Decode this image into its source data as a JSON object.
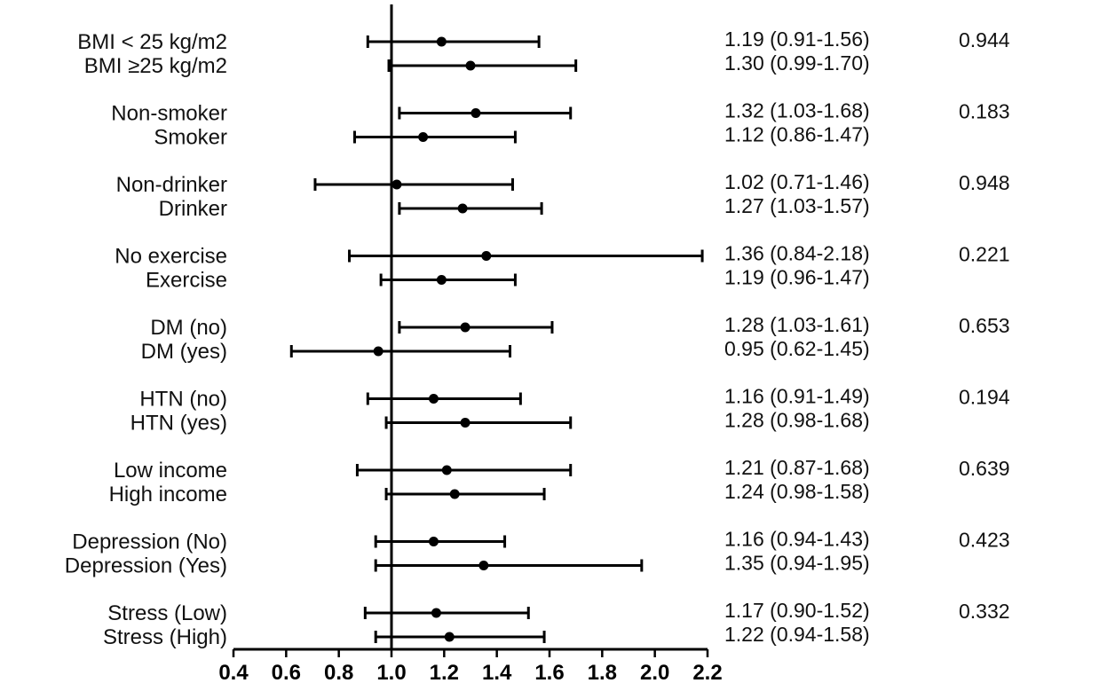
{
  "chart_data": {
    "type": "forest",
    "reference_line": 1.0,
    "xlim": [
      0.4,
      2.2
    ],
    "xticks": [
      "0.4",
      "0.6",
      "0.8",
      "1.0",
      "1.2",
      "1.4",
      "1.6",
      "1.8",
      "2.0",
      "2.2"
    ],
    "groups": [
      {
        "p_value": "0.944",
        "rows": [
          {
            "label": "BMI < 25 kg/m2",
            "estimate": 1.19,
            "lower": 0.91,
            "upper": 1.56,
            "ci_text": "1.19 (0.91-1.56)"
          },
          {
            "label": "BMI ≥25 kg/m2",
            "estimate": 1.3,
            "lower": 0.99,
            "upper": 1.7,
            "ci_text": "1.30 (0.99-1.70)"
          }
        ]
      },
      {
        "p_value": "0.183",
        "rows": [
          {
            "label": "Non-smoker",
            "estimate": 1.32,
            "lower": 1.03,
            "upper": 1.68,
            "ci_text": "1.32 (1.03-1.68)"
          },
          {
            "label": "Smoker",
            "estimate": 1.12,
            "lower": 0.86,
            "upper": 1.47,
            "ci_text": "1.12 (0.86-1.47)"
          }
        ]
      },
      {
        "p_value": "0.948",
        "rows": [
          {
            "label": "Non-drinker",
            "estimate": 1.02,
            "lower": 0.71,
            "upper": 1.46,
            "ci_text": "1.02 (0.71-1.46)"
          },
          {
            "label": "Drinker",
            "estimate": 1.27,
            "lower": 1.03,
            "upper": 1.57,
            "ci_text": "1.27 (1.03-1.57)"
          }
        ]
      },
      {
        "p_value": "0.221",
        "rows": [
          {
            "label": "No exercise",
            "estimate": 1.36,
            "lower": 0.84,
            "upper": 2.18,
            "ci_text": "1.36 (0.84-2.18)"
          },
          {
            "label": "Exercise",
            "estimate": 1.19,
            "lower": 0.96,
            "upper": 1.47,
            "ci_text": "1.19 (0.96-1.47)"
          }
        ]
      },
      {
        "p_value": "0.653",
        "rows": [
          {
            "label": "DM (no)",
            "estimate": 1.28,
            "lower": 1.03,
            "upper": 1.61,
            "ci_text": "1.28 (1.03-1.61)"
          },
          {
            "label": "DM (yes)",
            "estimate": 0.95,
            "lower": 0.62,
            "upper": 1.45,
            "ci_text": "0.95 (0.62-1.45)"
          }
        ]
      },
      {
        "p_value": "0.194",
        "rows": [
          {
            "label": "HTN (no)",
            "estimate": 1.16,
            "lower": 0.91,
            "upper": 1.49,
            "ci_text": "1.16 (0.91-1.49)"
          },
          {
            "label": "HTN (yes)",
            "estimate": 1.28,
            "lower": 0.98,
            "upper": 1.68,
            "ci_text": "1.28 (0.98-1.68)"
          }
        ]
      },
      {
        "p_value": "0.639",
        "rows": [
          {
            "label": "Low income",
            "estimate": 1.21,
            "lower": 0.87,
            "upper": 1.68,
            "ci_text": "1.21 (0.87-1.68)"
          },
          {
            "label": "High income",
            "estimate": 1.24,
            "lower": 0.98,
            "upper": 1.58,
            "ci_text": "1.24 (0.98-1.58)"
          }
        ]
      },
      {
        "p_value": "0.423",
        "rows": [
          {
            "label": "Depression (No)",
            "estimate": 1.16,
            "lower": 0.94,
            "upper": 1.43,
            "ci_text": "1.16 (0.94-1.43)"
          },
          {
            "label": "Depression (Yes)",
            "estimate": 1.35,
            "lower": 0.94,
            "upper": 1.95,
            "ci_text": "1.35 (0.94-1.95)"
          }
        ]
      },
      {
        "p_value": "0.332",
        "rows": [
          {
            "label": "Stress (Low)",
            "estimate": 1.17,
            "lower": 0.9,
            "upper": 1.52,
            "ci_text": "1.17 (0.90-1.52)"
          },
          {
            "label": "Stress (High)",
            "estimate": 1.22,
            "lower": 0.94,
            "upper": 1.58,
            "ci_text": "1.22 (0.94-1.58)"
          }
        ]
      }
    ]
  }
}
